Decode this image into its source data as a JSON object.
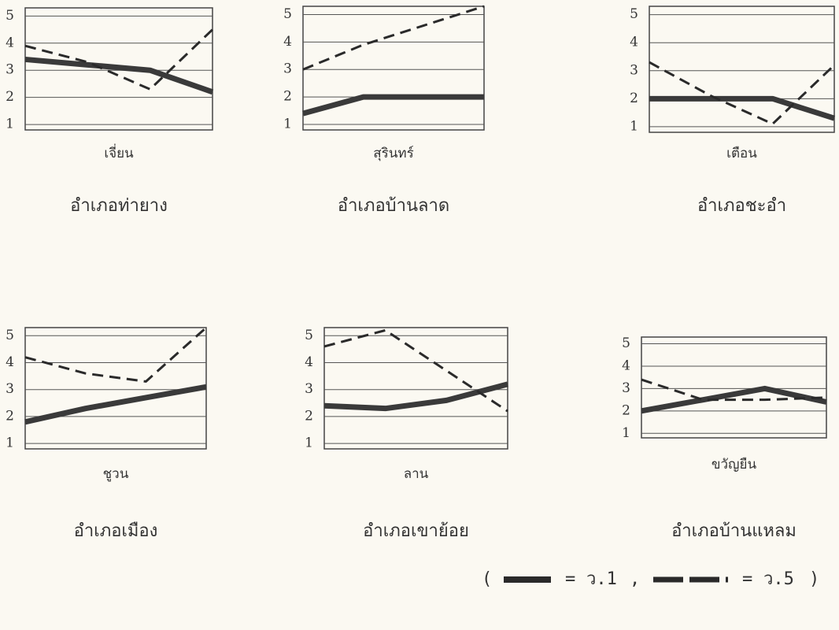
{
  "chart_data": [
    {
      "type": "line",
      "title": "อำเภอท่ายาง",
      "subtitle": "เจี่ยน",
      "categories": [
        null,
        null,
        null,
        null
      ],
      "ylim": [
        0.8,
        5.3
      ],
      "yticks": [
        1,
        2,
        3,
        4,
        5
      ],
      "grid": true,
      "series": [
        {
          "style": "solid",
          "color": "#3a3a3a",
          "values": [
            3.4,
            3.2,
            3.0,
            2.2
          ]
        },
        {
          "style": "dashed",
          "color": "#2a2a2a",
          "values": [
            3.9,
            3.3,
            2.3,
            4.5
          ]
        }
      ]
    },
    {
      "type": "line",
      "title": "อำเภอบ้านลาด",
      "subtitle": "สุรินทร์",
      "categories": [
        null,
        null,
        null,
        null
      ],
      "ylim": [
        0.8,
        5.3
      ],
      "yticks": [
        1,
        2,
        3,
        4,
        5
      ],
      "grid": true,
      "series": [
        {
          "style": "solid",
          "color": "#3a3a3a",
          "values": [
            1.4,
            2.0,
            2.0,
            2.0
          ]
        },
        {
          "style": "dashed",
          "color": "#2a2a2a",
          "values": [
            3.0,
            3.9,
            4.6,
            5.3
          ]
        }
      ]
    },
    {
      "type": "line",
      "title": "อำเภอชะอำ",
      "subtitle": "เตือน",
      "categories": [
        null,
        null,
        null,
        null
      ],
      "ylim": [
        0.8,
        5.3
      ],
      "yticks": [
        1,
        2,
        3,
        4,
        5
      ],
      "grid": true,
      "series": [
        {
          "style": "solid",
          "color": "#3a3a3a",
          "values": [
            2.0,
            2.0,
            2.0,
            1.3
          ]
        },
        {
          "style": "dashed",
          "color": "#2a2a2a",
          "values": [
            3.3,
            2.1,
            1.1,
            3.2
          ]
        }
      ]
    },
    {
      "type": "line",
      "title": "อำเภอเมือง",
      "subtitle": "ชูวน",
      "categories": [
        null,
        null,
        null,
        null
      ],
      "ylim": [
        0.8,
        5.3
      ],
      "yticks": [
        1,
        2,
        3,
        4,
        5
      ],
      "grid": true,
      "series": [
        {
          "style": "solid",
          "color": "#3a3a3a",
          "values": [
            1.8,
            2.3,
            2.7,
            3.1
          ]
        },
        {
          "style": "dashed",
          "color": "#2a2a2a",
          "values": [
            4.2,
            3.6,
            3.3,
            5.3
          ]
        }
      ]
    },
    {
      "type": "line",
      "title": "อำเภอเขาย้อย",
      "subtitle": "ลาน",
      "categories": [
        null,
        null,
        null,
        null
      ],
      "ylim": [
        0.8,
        5.3
      ],
      "yticks": [
        1,
        2,
        3,
        4,
        5
      ],
      "grid": true,
      "series": [
        {
          "style": "solid",
          "color": "#3a3a3a",
          "values": [
            2.4,
            2.3,
            2.6,
            3.2
          ]
        },
        {
          "style": "dashed",
          "color": "#2a2a2a",
          "values": [
            4.6,
            5.2,
            3.7,
            2.2
          ]
        }
      ]
    },
    {
      "type": "line",
      "title": "อำเภอบ้านแหลม",
      "subtitle": "ขวัญยืน",
      "categories": [
        null,
        null,
        null,
        null
      ],
      "ylim": [
        0.8,
        5.3
      ],
      "yticks": [
        1,
        2,
        3,
        4,
        5
      ],
      "grid": true,
      "series": [
        {
          "style": "solid",
          "color": "#3a3a3a",
          "values": [
            2.0,
            2.5,
            3.0,
            2.4
          ]
        },
        {
          "style": "dashed",
          "color": "#2a2a2a",
          "values": [
            3.4,
            2.5,
            2.5,
            2.6
          ]
        }
      ]
    }
  ],
  "legend": {
    "open": "(",
    "equals": "=",
    "separator": ",",
    "close": ")",
    "entries": [
      {
        "style": "solid",
        "name": "ว.1"
      },
      {
        "style": "dashed",
        "name": "ว.5"
      }
    ]
  }
}
